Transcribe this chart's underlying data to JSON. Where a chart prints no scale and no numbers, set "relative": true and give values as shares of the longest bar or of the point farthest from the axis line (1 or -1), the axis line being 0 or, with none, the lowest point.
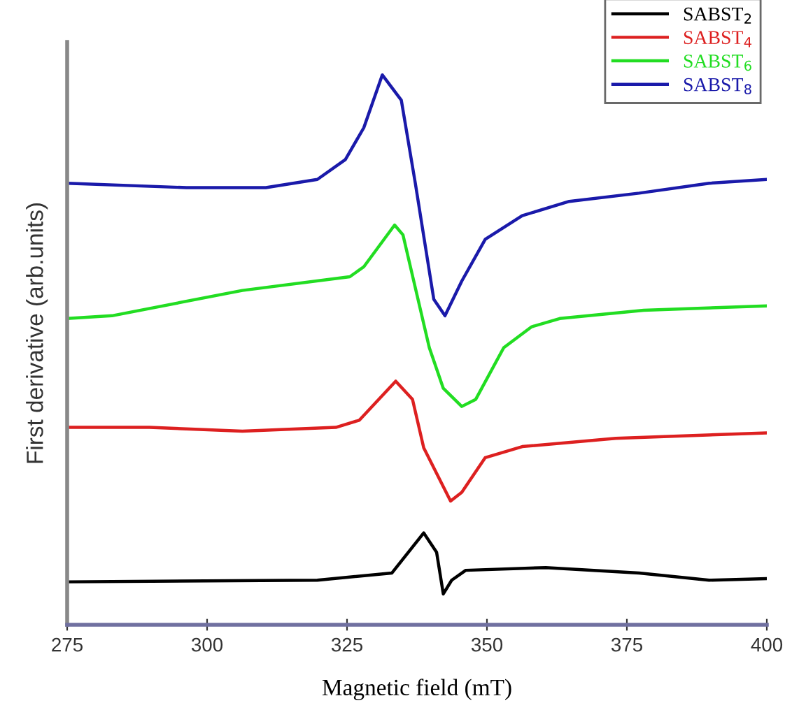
{
  "chart_data": {
    "type": "line",
    "relative": true,
    "xlabel": "Magnetic field (mT)",
    "ylabel": "First derivative (arb.units)",
    "xlim": [
      275,
      400
    ],
    "xticks": [
      275,
      300,
      325,
      350,
      375,
      400
    ],
    "legend": "top right",
    "grid": false,
    "marker": "none",
    "line_style": "solid",
    "series": [
      {
        "name": "SABST$_{2}$",
        "color": "#000000",
        "x": [
          275,
          319.7,
          333,
          338.7,
          341,
          342.2,
          343.7,
          346.2,
          360.5,
          377.2,
          389.7,
          400
        ],
        "values": [
          0.078,
          0.081,
          0.094,
          0.167,
          0.132,
          0.056,
          0.081,
          0.099,
          0.104,
          0.094,
          0.081,
          0.084
        ]
      },
      {
        "name": "SABST$_{4}$",
        "color": "#dd2020",
        "x": [
          275,
          289.7,
          306.3,
          323,
          327.2,
          333.7,
          336.7,
          338.7,
          343.5,
          345.5,
          349.7,
          356.3,
          373,
          400
        ],
        "values": [
          0.359,
          0.359,
          0.352,
          0.359,
          0.372,
          0.443,
          0.41,
          0.322,
          0.225,
          0.241,
          0.304,
          0.324,
          0.339,
          0.349
        ]
      },
      {
        "name": "SABST$_{6}$",
        "color": "#22dd22",
        "x": [
          275,
          283,
          306.3,
          325.5,
          328,
          333.5,
          335,
          339.7,
          342.2,
          345.5,
          348,
          353,
          358,
          363,
          378,
          400
        ],
        "values": [
          0.557,
          0.562,
          0.608,
          0.633,
          0.651,
          0.727,
          0.709,
          0.504,
          0.43,
          0.397,
          0.41,
          0.504,
          0.542,
          0.557,
          0.572,
          0.58
        ]
      },
      {
        "name": "SABST$_{8}$",
        "color": "#1a1aaa",
        "x": [
          275,
          296.3,
          310.5,
          319.7,
          324.7,
          328,
          331.3,
          334.7,
          337.2,
          340.5,
          342.5,
          345.5,
          349.7,
          356.3,
          364.7,
          377.2,
          389.7,
          400
        ],
        "values": [
          0.803,
          0.795,
          0.795,
          0.81,
          0.846,
          0.904,
          1.0,
          0.954,
          0.803,
          0.592,
          0.562,
          0.625,
          0.701,
          0.744,
          0.77,
          0.785,
          0.803,
          0.81
        ]
      }
    ]
  }
}
